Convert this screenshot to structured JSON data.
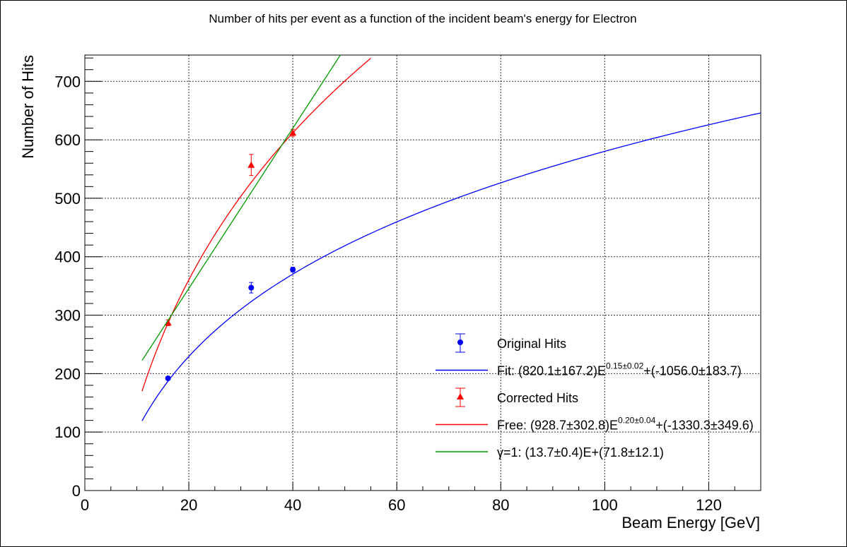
{
  "chart_data": {
    "type": "scatter",
    "title": "Number of hits per event as a function of the incident beam's energy for Electron",
    "xlabel": "Beam Energy [GeV]",
    "ylabel": "Number of Hits",
    "xlim": [
      0,
      130
    ],
    "ylim": [
      0,
      745
    ],
    "x_ticks": [
      "0",
      "20",
      "40",
      "60",
      "80",
      "100",
      "120"
    ],
    "y_ticks": [
      "0",
      "100",
      "200",
      "300",
      "400",
      "500",
      "600",
      "700"
    ],
    "grid": true,
    "legend_position": "bottom-right",
    "series": [
      {
        "name": "Original Hits",
        "kind": "points",
        "marker": "circle",
        "color": "#0000ff",
        "x": [
          16,
          32,
          40
        ],
        "y": [
          192,
          347,
          378
        ],
        "yerr": [
          3,
          9,
          4
        ]
      },
      {
        "name": "Fit",
        "kind": "curve",
        "color": "#0000ff",
        "fit": {
          "A": 820.1,
          "p": 0.15,
          "C": -1056.0
        },
        "x_range": [
          11,
          130
        ]
      },
      {
        "name": "Corrected Hits",
        "kind": "points",
        "marker": "triangle",
        "color": "#ff0000",
        "x": [
          16,
          32,
          40
        ],
        "y": [
          287,
          557,
          612
        ],
        "yerr": [
          5,
          18,
          6
        ]
      },
      {
        "name": "Free",
        "kind": "curve",
        "color": "#ff0000",
        "fit": {
          "A": 928.7,
          "p": 0.2,
          "C": -1330.3
        },
        "x_range": [
          11,
          55
        ]
      },
      {
        "name": "γ=1",
        "kind": "line",
        "color": "#009900",
        "fit": {
          "slope": 13.7,
          "intercept": 71.8
        },
        "x_range": [
          11,
          49.2
        ]
      }
    ],
    "legend": {
      "entries": [
        {
          "label": "Original Hits",
          "kind": "point",
          "marker": "circle",
          "color": "#0000ff"
        },
        {
          "label_pre": "Fit: (820.1±167.2)E",
          "label_sup": "0.15±0.02",
          "label_post": "+(-1056.0±183.7)",
          "kind": "line",
          "color": "#0000ff"
        },
        {
          "label": "Corrected Hits",
          "kind": "point",
          "marker": "triangle",
          "color": "#ff0000"
        },
        {
          "label_pre": "Free: (928.7±302.8)E",
          "label_sup": "0.20±0.04",
          "label_post": "+(-1330.3±349.6)",
          "kind": "line",
          "color": "#ff0000"
        },
        {
          "label": "γ=1: (13.7±0.4)E+(71.8±12.1)",
          "kind": "line",
          "color": "#009900"
        }
      ]
    }
  }
}
